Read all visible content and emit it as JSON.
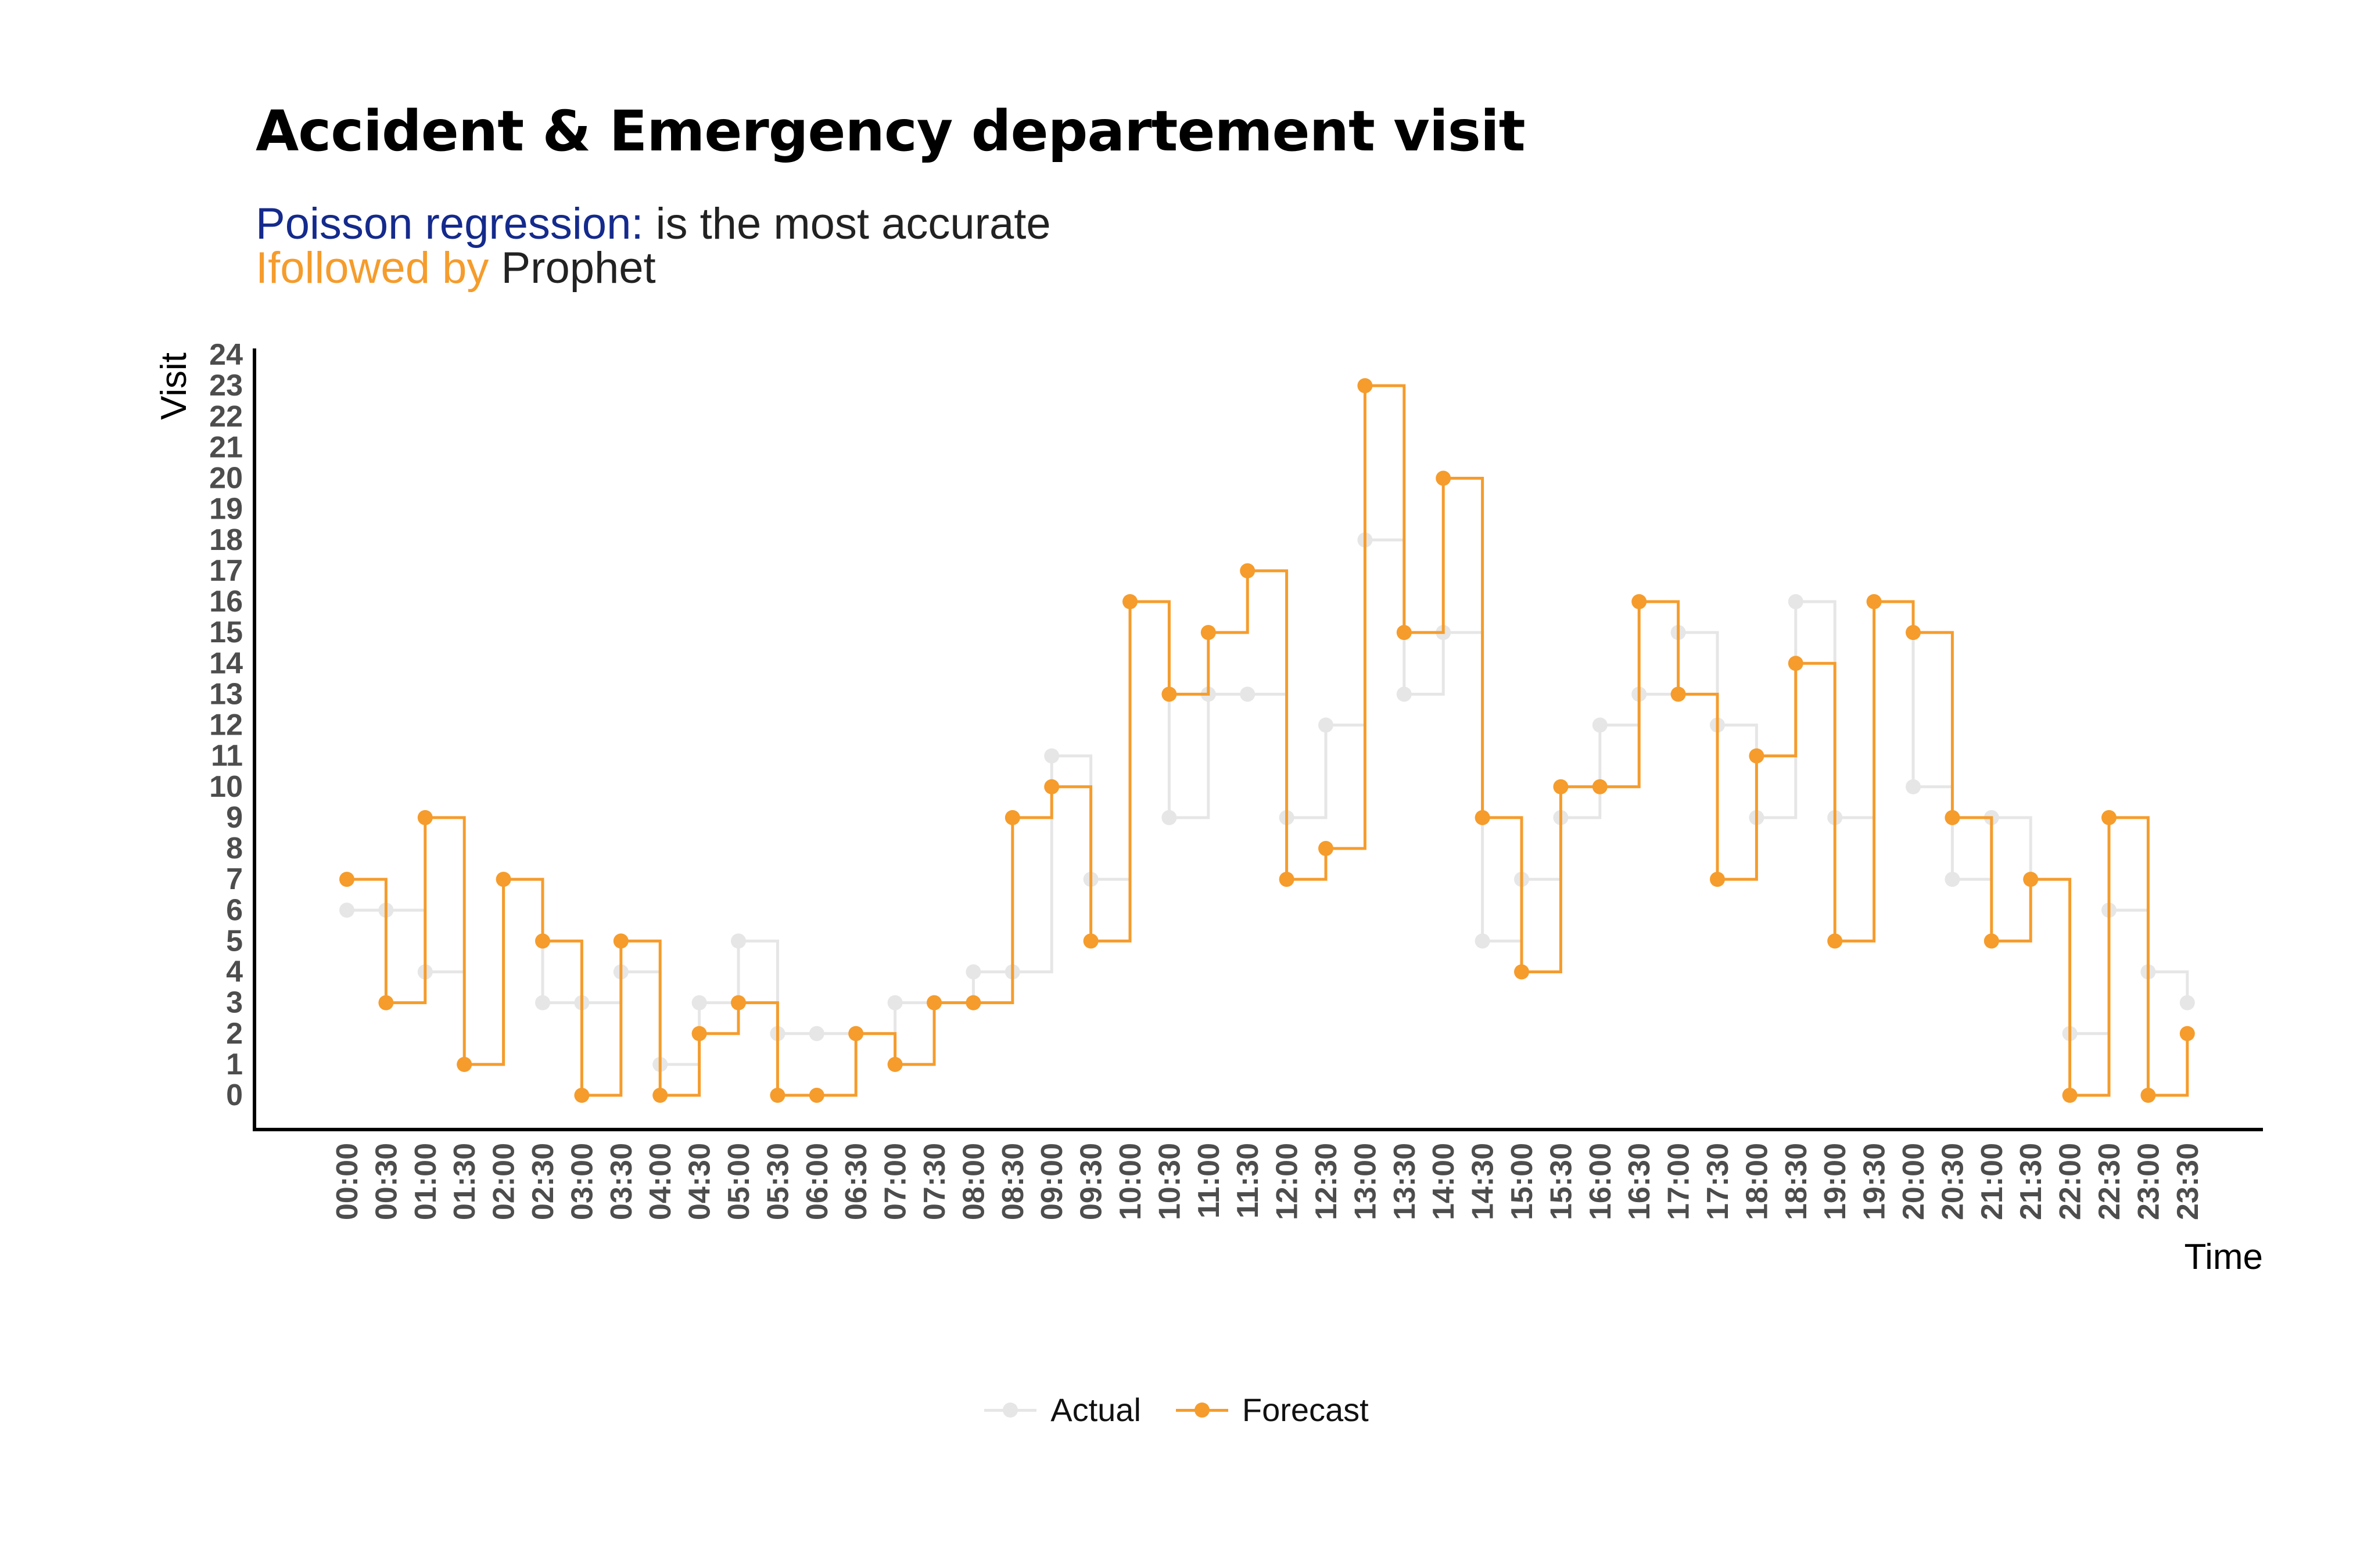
{
  "title": "Accident & Emergency departement visit",
  "subtitle": {
    "line1_colored": "Poisson regression:",
    "line1_plain": " is the most accurate",
    "line2_colored": "Ifollowed by",
    "line2_plain": " Prophet"
  },
  "colors": {
    "actual": "#e6e6e6",
    "forecast": "#f59c2c",
    "subtitle_blue": "#142a8c",
    "subtitle_orange": "#f59c2c",
    "axis": "#000000"
  },
  "legend": {
    "actual_label": "Actual",
    "forecast_label": "Forecast",
    "position": "bottom"
  },
  "chart_data": {
    "type": "line",
    "step": true,
    "title": "Accident & Emergency departement visit",
    "xlabel": "Time",
    "ylabel": "Visit",
    "ylim": [
      0,
      24
    ],
    "y_ticks": [
      0,
      1,
      2,
      3,
      4,
      5,
      6,
      7,
      8,
      9,
      10,
      11,
      12,
      13,
      14,
      15,
      16,
      17,
      18,
      19,
      20,
      21,
      22,
      23,
      24
    ],
    "grid": false,
    "categories": [
      "00:00",
      "00:30",
      "01:00",
      "01:30",
      "02:00",
      "02:30",
      "03:00",
      "03:30",
      "04:00",
      "04:30",
      "05:00",
      "05:30",
      "06:00",
      "06:30",
      "07:00",
      "07:30",
      "08:00",
      "08:30",
      "09:00",
      "09:30",
      "10:00",
      "10:30",
      "11:00",
      "11:30",
      "12:00",
      "12:30",
      "13:00",
      "13:30",
      "14:00",
      "14:30",
      "15:00",
      "15:30",
      "16:00",
      "16:30",
      "17:00",
      "17:30",
      "18:00",
      "18:30",
      "19:00",
      "19:30",
      "20:00",
      "20:30",
      "21:00",
      "21:30",
      "22:00",
      "22:30",
      "23:00",
      "23:30"
    ],
    "series": [
      {
        "name": "Actual",
        "values": [
          6,
          6,
          4,
          1,
          7,
          3,
          3,
          4,
          1,
          3,
          5,
          2,
          2,
          2,
          3,
          3,
          4,
          4,
          11,
          7,
          16,
          9,
          13,
          13,
          9,
          12,
          18,
          13,
          15,
          5,
          7,
          9,
          12,
          13,
          15,
          12,
          9,
          16,
          9,
          16,
          10,
          7,
          9,
          7,
          2,
          6,
          4,
          3
        ]
      },
      {
        "name": "Forecast",
        "values": [
          7,
          3,
          9,
          1,
          7,
          5,
          0,
          5,
          0,
          2,
          3,
          0,
          0,
          2,
          1,
          3,
          3,
          9,
          10,
          5,
          16,
          13,
          15,
          17,
          7,
          8,
          23,
          15,
          20,
          9,
          4,
          10,
          10,
          16,
          13,
          7,
          11,
          14,
          5,
          16,
          15,
          9,
          5,
          7,
          0,
          9,
          0,
          2
        ]
      }
    ]
  }
}
